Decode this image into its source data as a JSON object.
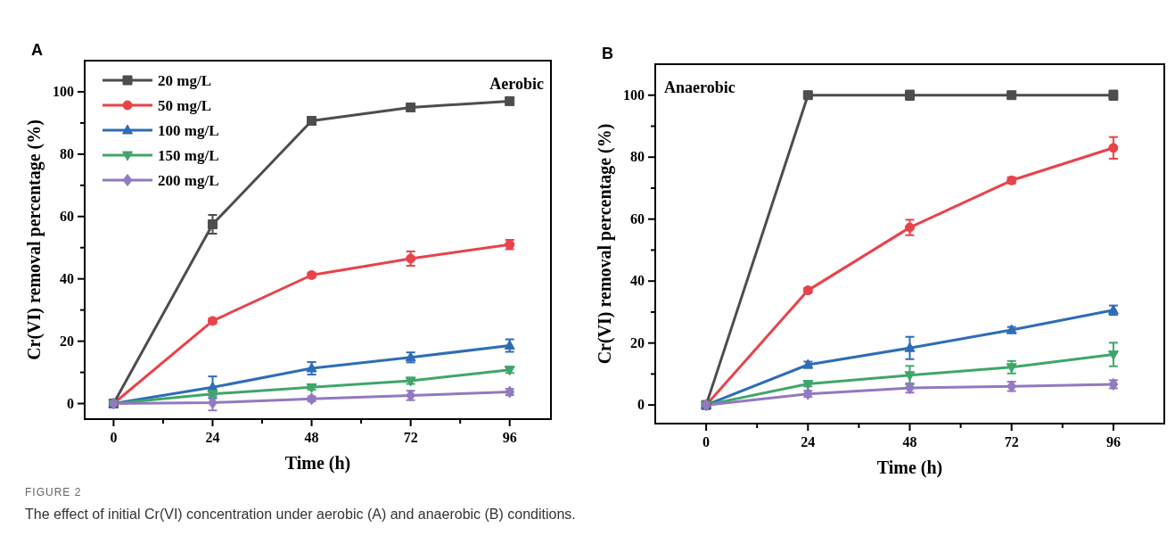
{
  "chart_data": [
    {
      "type": "line",
      "title": "A",
      "xlabel": "Time (h)",
      "ylabel": "Cr(VI) removal percentage (%)",
      "x": [
        0,
        24,
        48,
        72,
        96
      ],
      "xlim": [
        -7,
        106
      ],
      "ylim": [
        -5,
        110
      ],
      "xticks": [
        0,
        {
          "value": 12,
          "label": null
        },
        24,
        {
          "value": 36,
          "label": null
        },
        48,
        {
          "value": 60,
          "label": null
        },
        72,
        {
          "value": 84,
          "label": null
        },
        96
      ],
      "yticks": [
        0,
        {
          "value": 10,
          "label": null
        },
        20,
        {
          "value": 30,
          "label": null
        },
        40,
        {
          "value": 50,
          "label": null
        },
        60,
        {
          "value": 70,
          "label": null
        },
        80,
        {
          "value": 90,
          "label": null
        },
        100
      ],
      "legend": "top left",
      "grid": false,
      "line_style": "solid",
      "annotations": [
        "Aerobic",
        "FIGURE 2",
        "The effect of initial Cr(VI) concentration under aerobic (A) and anaerobic (B) conditions."
      ],
      "series": [
        {
          "name": "20 mg/L",
          "color": "#4d4d4d",
          "marker": "square",
          "values": [
            0,
            57.5,
            90.7,
            95,
            97
          ],
          "errors": [
            null,
            3,
            0.8,
            0.8,
            0.8
          ]
        },
        {
          "name": "50 mg/L",
          "color": "#e8434a",
          "marker": "circle",
          "values": [
            0,
            26.5,
            41.2,
            46.5,
            51
          ],
          "errors": [
            null,
            0.8,
            0.8,
            2.3,
            1.5
          ]
        },
        {
          "name": "100 mg/L",
          "color": "#2e6db6",
          "marker": "triangle",
          "values": [
            0,
            5.2,
            11.3,
            14.8,
            18.6
          ],
          "errors": [
            null,
            3.5,
            2,
            1.6,
            2
          ]
        },
        {
          "name": "150 mg/L",
          "color": "#3fa66a",
          "marker": "triangle-down",
          "values": [
            0,
            3.1,
            5.2,
            7.3,
            10.8
          ],
          "errors": [
            null,
            0.8,
            0.8,
            1,
            1
          ]
        },
        {
          "name": "200 mg/L",
          "color": "#9279c0",
          "marker": "diamond",
          "values": [
            0,
            0.3,
            1.5,
            2.6,
            3.7
          ],
          "errors": [
            null,
            2.5,
            0.8,
            1.5,
            1
          ]
        }
      ]
    },
    {
      "type": "line",
      "title": "B",
      "xlabel": "Time (h)",
      "ylabel": "Cr(VI) removal percentage (%)",
      "x": [
        0,
        24,
        48,
        72,
        96
      ],
      "xlim": [
        -12,
        108
      ],
      "ylim": [
        -6,
        110
      ],
      "xticks": [
        0,
        {
          "value": 12,
          "label": null
        },
        24,
        {
          "value": 36,
          "label": null
        },
        48,
        {
          "value": 60,
          "label": null
        },
        72,
        {
          "value": 84,
          "label": null
        },
        96
      ],
      "yticks": [
        0,
        {
          "value": 10,
          "label": null
        },
        20,
        {
          "value": 30,
          "label": null
        },
        40,
        {
          "value": 50,
          "label": null
        },
        60,
        {
          "value": 70,
          "label": null
        },
        80,
        {
          "value": 90,
          "label": null
        },
        100
      ],
      "grid": false,
      "line_style": "solid",
      "annotations": [
        "Anaerobic"
      ],
      "series": [
        {
          "color": "#4d4d4d",
          "marker": "square",
          "values": [
            0,
            100,
            100,
            100,
            100
          ],
          "errors": [
            null,
            0.5,
            1.5,
            0.8,
            1.5
          ]
        },
        {
          "color": "#e8434a",
          "marker": "circle",
          "values": [
            0,
            37,
            57.3,
            72.5,
            83
          ],
          "errors": [
            null,
            0.8,
            2.5,
            1,
            3.5
          ]
        },
        {
          "color": "#2e6db6",
          "marker": "triangle",
          "values": [
            0,
            13,
            18.4,
            24.2,
            30.6
          ],
          "errors": [
            null,
            1,
            3.6,
            1,
            1.5
          ]
        },
        {
          "color": "#3fa66a",
          "marker": "triangle-down",
          "values": [
            0,
            6.8,
            9.6,
            12.2,
            16.3
          ],
          "errors": [
            null,
            0.8,
            3,
            2,
            3.8
          ]
        },
        {
          "color": "#9279c0",
          "marker": "diamond",
          "values": [
            0,
            3.6,
            5.5,
            6,
            6.7
          ],
          "errors": [
            null,
            1,
            1.5,
            1.5,
            1.3
          ]
        }
      ]
    }
  ]
}
